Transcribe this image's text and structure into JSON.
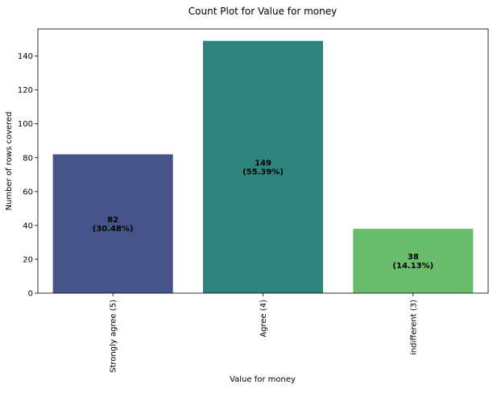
{
  "chart_data": {
    "type": "bar",
    "title": "Count Plot for Value for money",
    "xlabel": "Value for money",
    "ylabel": "Number of rows covered",
    "categories": [
      "Strongly agree (5)",
      "Agree (4)",
      "indifferent (3)"
    ],
    "values": [
      82,
      149,
      38
    ],
    "bar_labels": [
      [
        "82",
        "(30.48%)"
      ],
      [
        "149",
        "(55.39%)"
      ],
      [
        "38",
        "(14.13%)"
      ]
    ],
    "colors": [
      "#46548a",
      "#2e847c",
      "#69bd6d"
    ],
    "ylim": [
      0,
      156
    ],
    "yticks": [
      0,
      20,
      40,
      60,
      80,
      100,
      120,
      140
    ],
    "grid": false,
    "legend": "none"
  }
}
